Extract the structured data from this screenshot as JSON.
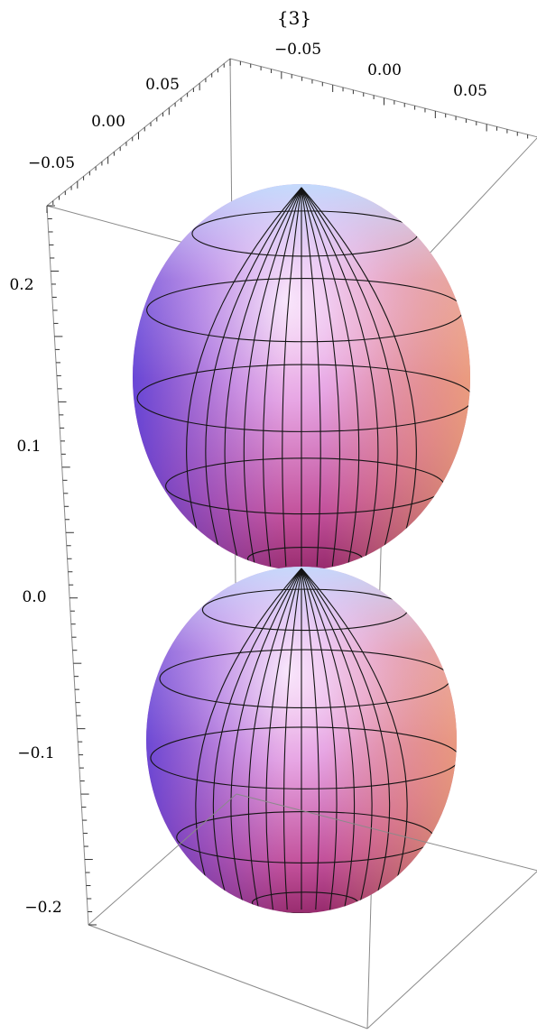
{
  "chart_data": {
    "type": "surface3d",
    "title": "{3}",
    "surface": "two-lobed surface of revolution about the vertical axis",
    "colors": {
      "lobe_left": "#6f57e0",
      "lobe_center": "#e8a8e0",
      "lobe_right": "#f3b98a",
      "lobe_bottom": "#b8306b",
      "mesh": "#141414",
      "box": "#8a8a8a"
    },
    "axes": {
      "x": {
        "ticks": [
          "−0.05",
          "0.00",
          "0.05"
        ],
        "range": [
          -0.07,
          0.07
        ]
      },
      "y": {
        "ticks": [
          "0.05",
          "0.00",
          "−0.05"
        ],
        "range": [
          -0.07,
          0.07
        ]
      },
      "z": {
        "ticks": [
          "0.2",
          "0.1",
          "0.0",
          "−0.1",
          "−0.2"
        ],
        "range": [
          -0.27,
          0.27
        ]
      }
    },
    "lobes": [
      {
        "name": "upper",
        "z_range": [
          0.0,
          0.25
        ]
      },
      {
        "name": "lower",
        "z_range": [
          -0.25,
          0.0
        ]
      }
    ]
  }
}
